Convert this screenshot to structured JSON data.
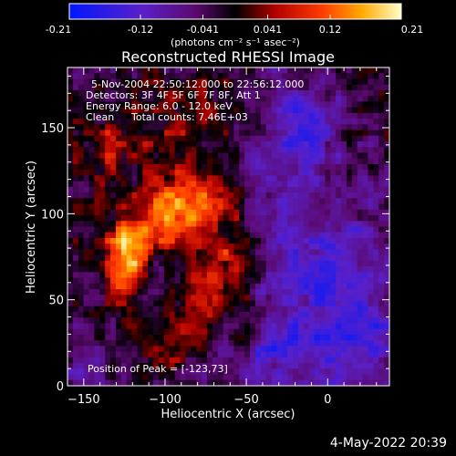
{
  "colorbar": {
    "ticks": [
      "-0.21",
      "-0.12",
      "-0.041",
      "0.041",
      "0.12",
      "0.21"
    ],
    "tick_values": [
      -0.21,
      -0.12,
      -0.041,
      0.041,
      0.12,
      0.21
    ],
    "range": [
      -0.21,
      0.21
    ],
    "unit_label": "(photons cm⁻² s⁻¹ asec⁻²)"
  },
  "chart_data": {
    "type": "heatmap",
    "title": "Reconstructed RHESSI Image",
    "xlabel": "Heliocentric X (arcsec)",
    "ylabel": "Heliocentric Y (arcsec)",
    "xlim": [
      -160,
      38
    ],
    "ylim": [
      0,
      185
    ],
    "xticks": [
      -150,
      -100,
      -50,
      0
    ],
    "yticks": [
      0,
      50,
      100,
      150
    ],
    "xtick_labels": [
      "−150",
      "−100",
      "−50",
      "0"
    ],
    "ytick_labels": [
      "0",
      "50",
      "100",
      "150"
    ],
    "grid": false,
    "colormap": "red-yellow-white (positive) / purple-blue (negative)",
    "peak_position": [
      -123,
      73
    ],
    "annotations": {
      "time_range": "5-Nov-2004 22:50:12.000 to 22:56:12.000",
      "detectors": "Detectors: 3F 4F 5F 6F 7F 8F, Att 1",
      "energy_range": "Energy Range: 6.0 - 12.0 keV",
      "clean": "Clean",
      "total_counts": "Total counts: 7.46E+03",
      "peak": "Position of Peak = [-123,73]"
    }
  },
  "footer": {
    "date": "4-May-2022 20:39"
  }
}
